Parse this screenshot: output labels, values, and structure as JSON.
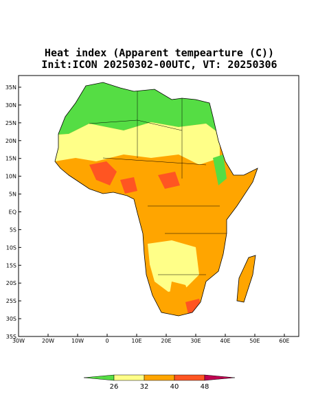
{
  "header": {
    "title": "Heat index (Apparent tempearture (C))",
    "subtitle": "Init:ICON 20250302-00UTC, VT: 20250306"
  },
  "map": {
    "lat_ticks": [
      "35N",
      "30N",
      "25N",
      "20N",
      "15N",
      "10N",
      "5N",
      "EQ",
      "5S",
      "10S",
      "15S",
      "20S",
      "25S",
      "30S",
      "35S"
    ],
    "lon_ticks": [
      "30W",
      "20W",
      "10W",
      "0",
      "10E",
      "20E",
      "30E",
      "40E",
      "50E",
      "60E"
    ]
  },
  "colorbar": {
    "labels": [
      "26",
      "32",
      "40",
      "48"
    ],
    "colors": [
      "#55dd44",
      "#ffff88",
      "#ffa500",
      "#ff5522",
      "#c00050"
    ]
  }
}
